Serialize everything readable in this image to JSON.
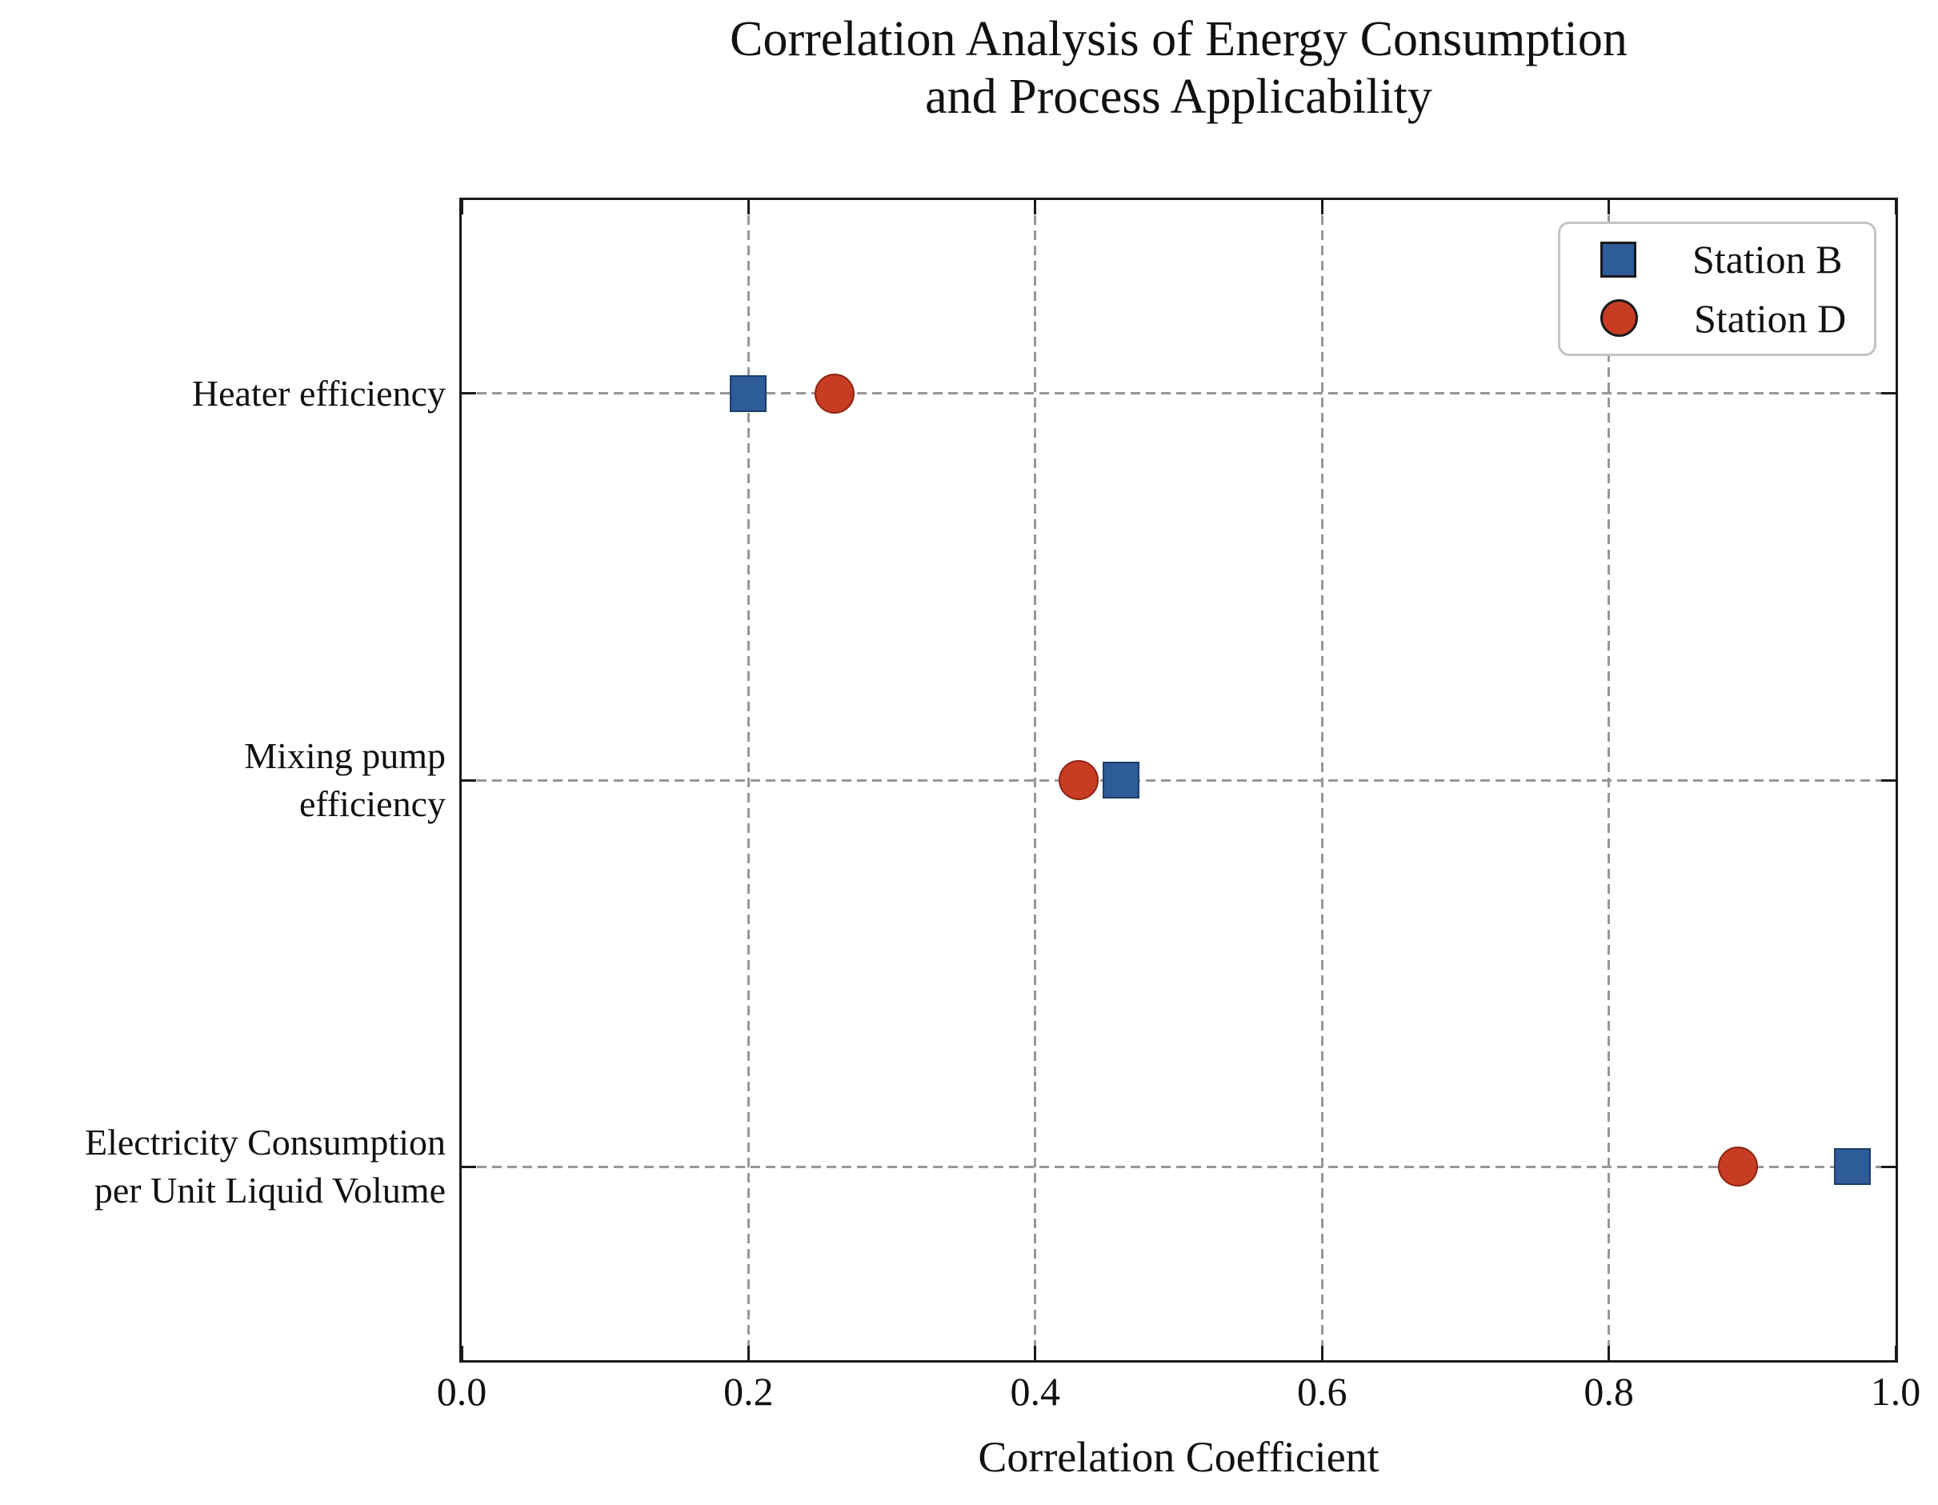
{
  "chart_data": {
    "type": "scatter",
    "title": "Correlation Analysis of Energy Consumption\nand Process Applicability",
    "xlabel": "Correlation Coefficient",
    "xlim": [
      0.0,
      1.0
    ],
    "xticks": [
      0.0,
      0.2,
      0.4,
      0.6,
      0.8,
      1.0
    ],
    "xtick_labels": [
      "0.0",
      "0.2",
      "0.4",
      "0.6",
      "0.8",
      "1.0"
    ],
    "categories": [
      "Heater efficiency",
      "Mixing pump\nefficiency",
      "Electricity Consumption\nper Unit Liquid Volume"
    ],
    "grid": "dashed",
    "legend_position": "upper right",
    "series": [
      {
        "name": "Station B",
        "marker": "square",
        "color": "#2d5c99",
        "edge_color": "#1c3d68",
        "values": [
          0.2,
          0.46,
          0.97
        ]
      },
      {
        "name": "Station D",
        "marker": "circle",
        "color": "#c83c23",
        "edge_color": "#8c2514",
        "values": [
          0.26,
          0.43,
          0.89
        ]
      }
    ],
    "colors": {
      "text": "#111111",
      "grid": "#979797",
      "spine": "#1a1a1a",
      "legend_border": "#c4c4c4",
      "background": "#ffffff"
    }
  }
}
